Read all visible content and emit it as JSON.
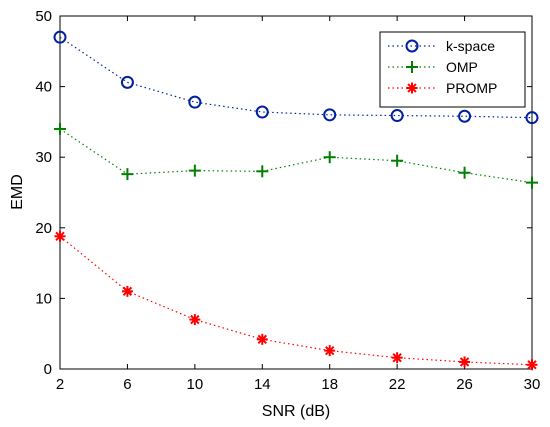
{
  "chart_data": {
    "type": "line",
    "title": "",
    "xlabel": "SNR (dB)",
    "ylabel": "EMD",
    "x": [
      2,
      6,
      10,
      14,
      18,
      22,
      26,
      30
    ],
    "xlim": [
      2,
      30
    ],
    "ylim": [
      0,
      50
    ],
    "xticks": [
      2,
      6,
      10,
      14,
      18,
      22,
      26,
      30
    ],
    "yticks": [
      0,
      10,
      20,
      30,
      40,
      50
    ],
    "grid": false,
    "legend_position": "top-right",
    "series": [
      {
        "name": "k-space",
        "color": "#00209f",
        "marker": "circle",
        "line": "dotted",
        "values": [
          47.0,
          40.6,
          37.8,
          36.4,
          36.0,
          35.9,
          35.8,
          35.6
        ]
      },
      {
        "name": "OMP",
        "color": "#008000",
        "marker": "plus",
        "line": "dotted",
        "values": [
          34.0,
          27.6,
          28.1,
          28.0,
          30.0,
          29.5,
          27.8,
          26.4
        ]
      },
      {
        "name": "PROMP",
        "color": "#ff0000",
        "marker": "asterisk",
        "line": "dotted",
        "values": [
          18.8,
          11.0,
          7.0,
          4.2,
          2.6,
          1.6,
          1.0,
          0.6
        ]
      }
    ]
  }
}
